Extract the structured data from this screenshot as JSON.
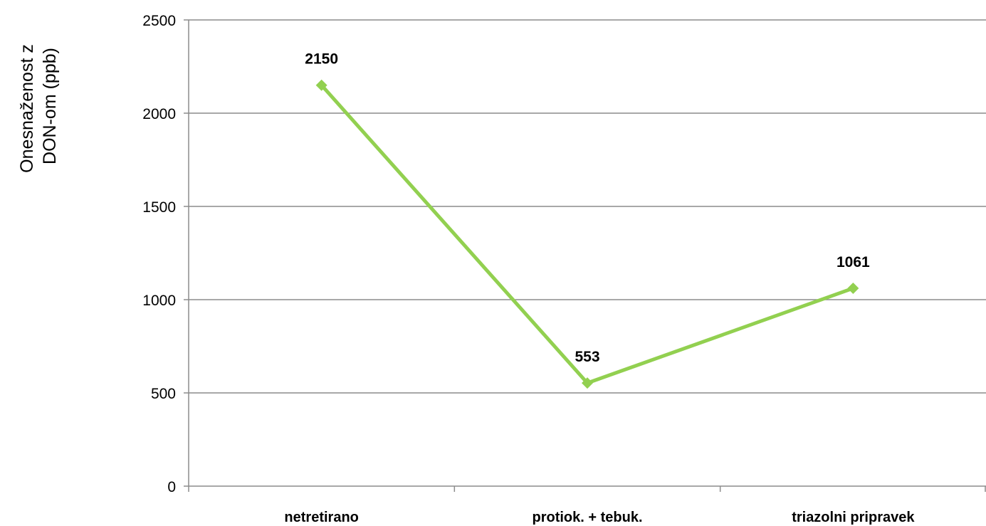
{
  "chart_data": {
    "type": "line",
    "title": "",
    "xlabel": "",
    "ylabel_lines": [
      "Onesnaženost z",
      "DON-om  (ppb)"
    ],
    "categories": [
      "netretirano",
      "protiok. + tebuk.",
      "triazolni pripravek"
    ],
    "series": [
      {
        "values": [
          2150,
          553,
          1061
        ],
        "data_labels": [
          "2150",
          "553",
          "1061"
        ],
        "color": "#92d050"
      }
    ],
    "ylim": [
      0,
      2500
    ],
    "yticks": [
      0,
      500,
      1000,
      1500,
      2000,
      2500
    ],
    "ytick_labels": [
      "0",
      "500",
      "1000",
      "1500",
      "2000",
      "2500"
    ],
    "grid": true,
    "legend": "none",
    "colors": {
      "gridline": "#8c8c8c",
      "axis": "#8c8c8c",
      "series": "#92d050"
    }
  }
}
